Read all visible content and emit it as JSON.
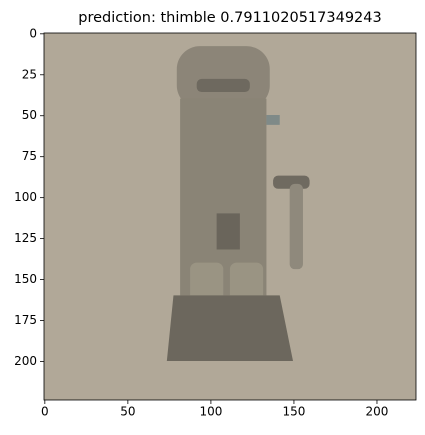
{
  "chart_data": {
    "type": "image",
    "title": "prediction: thimble 0.7911020517349243",
    "xlim": [
      -0.5,
      223.5
    ],
    "ylim": [
      223.5,
      -0.5
    ],
    "xticks": [
      0,
      50,
      100,
      150,
      200
    ],
    "yticks": [
      0,
      25,
      50,
      75,
      100,
      125,
      150,
      175,
      200
    ]
  }
}
